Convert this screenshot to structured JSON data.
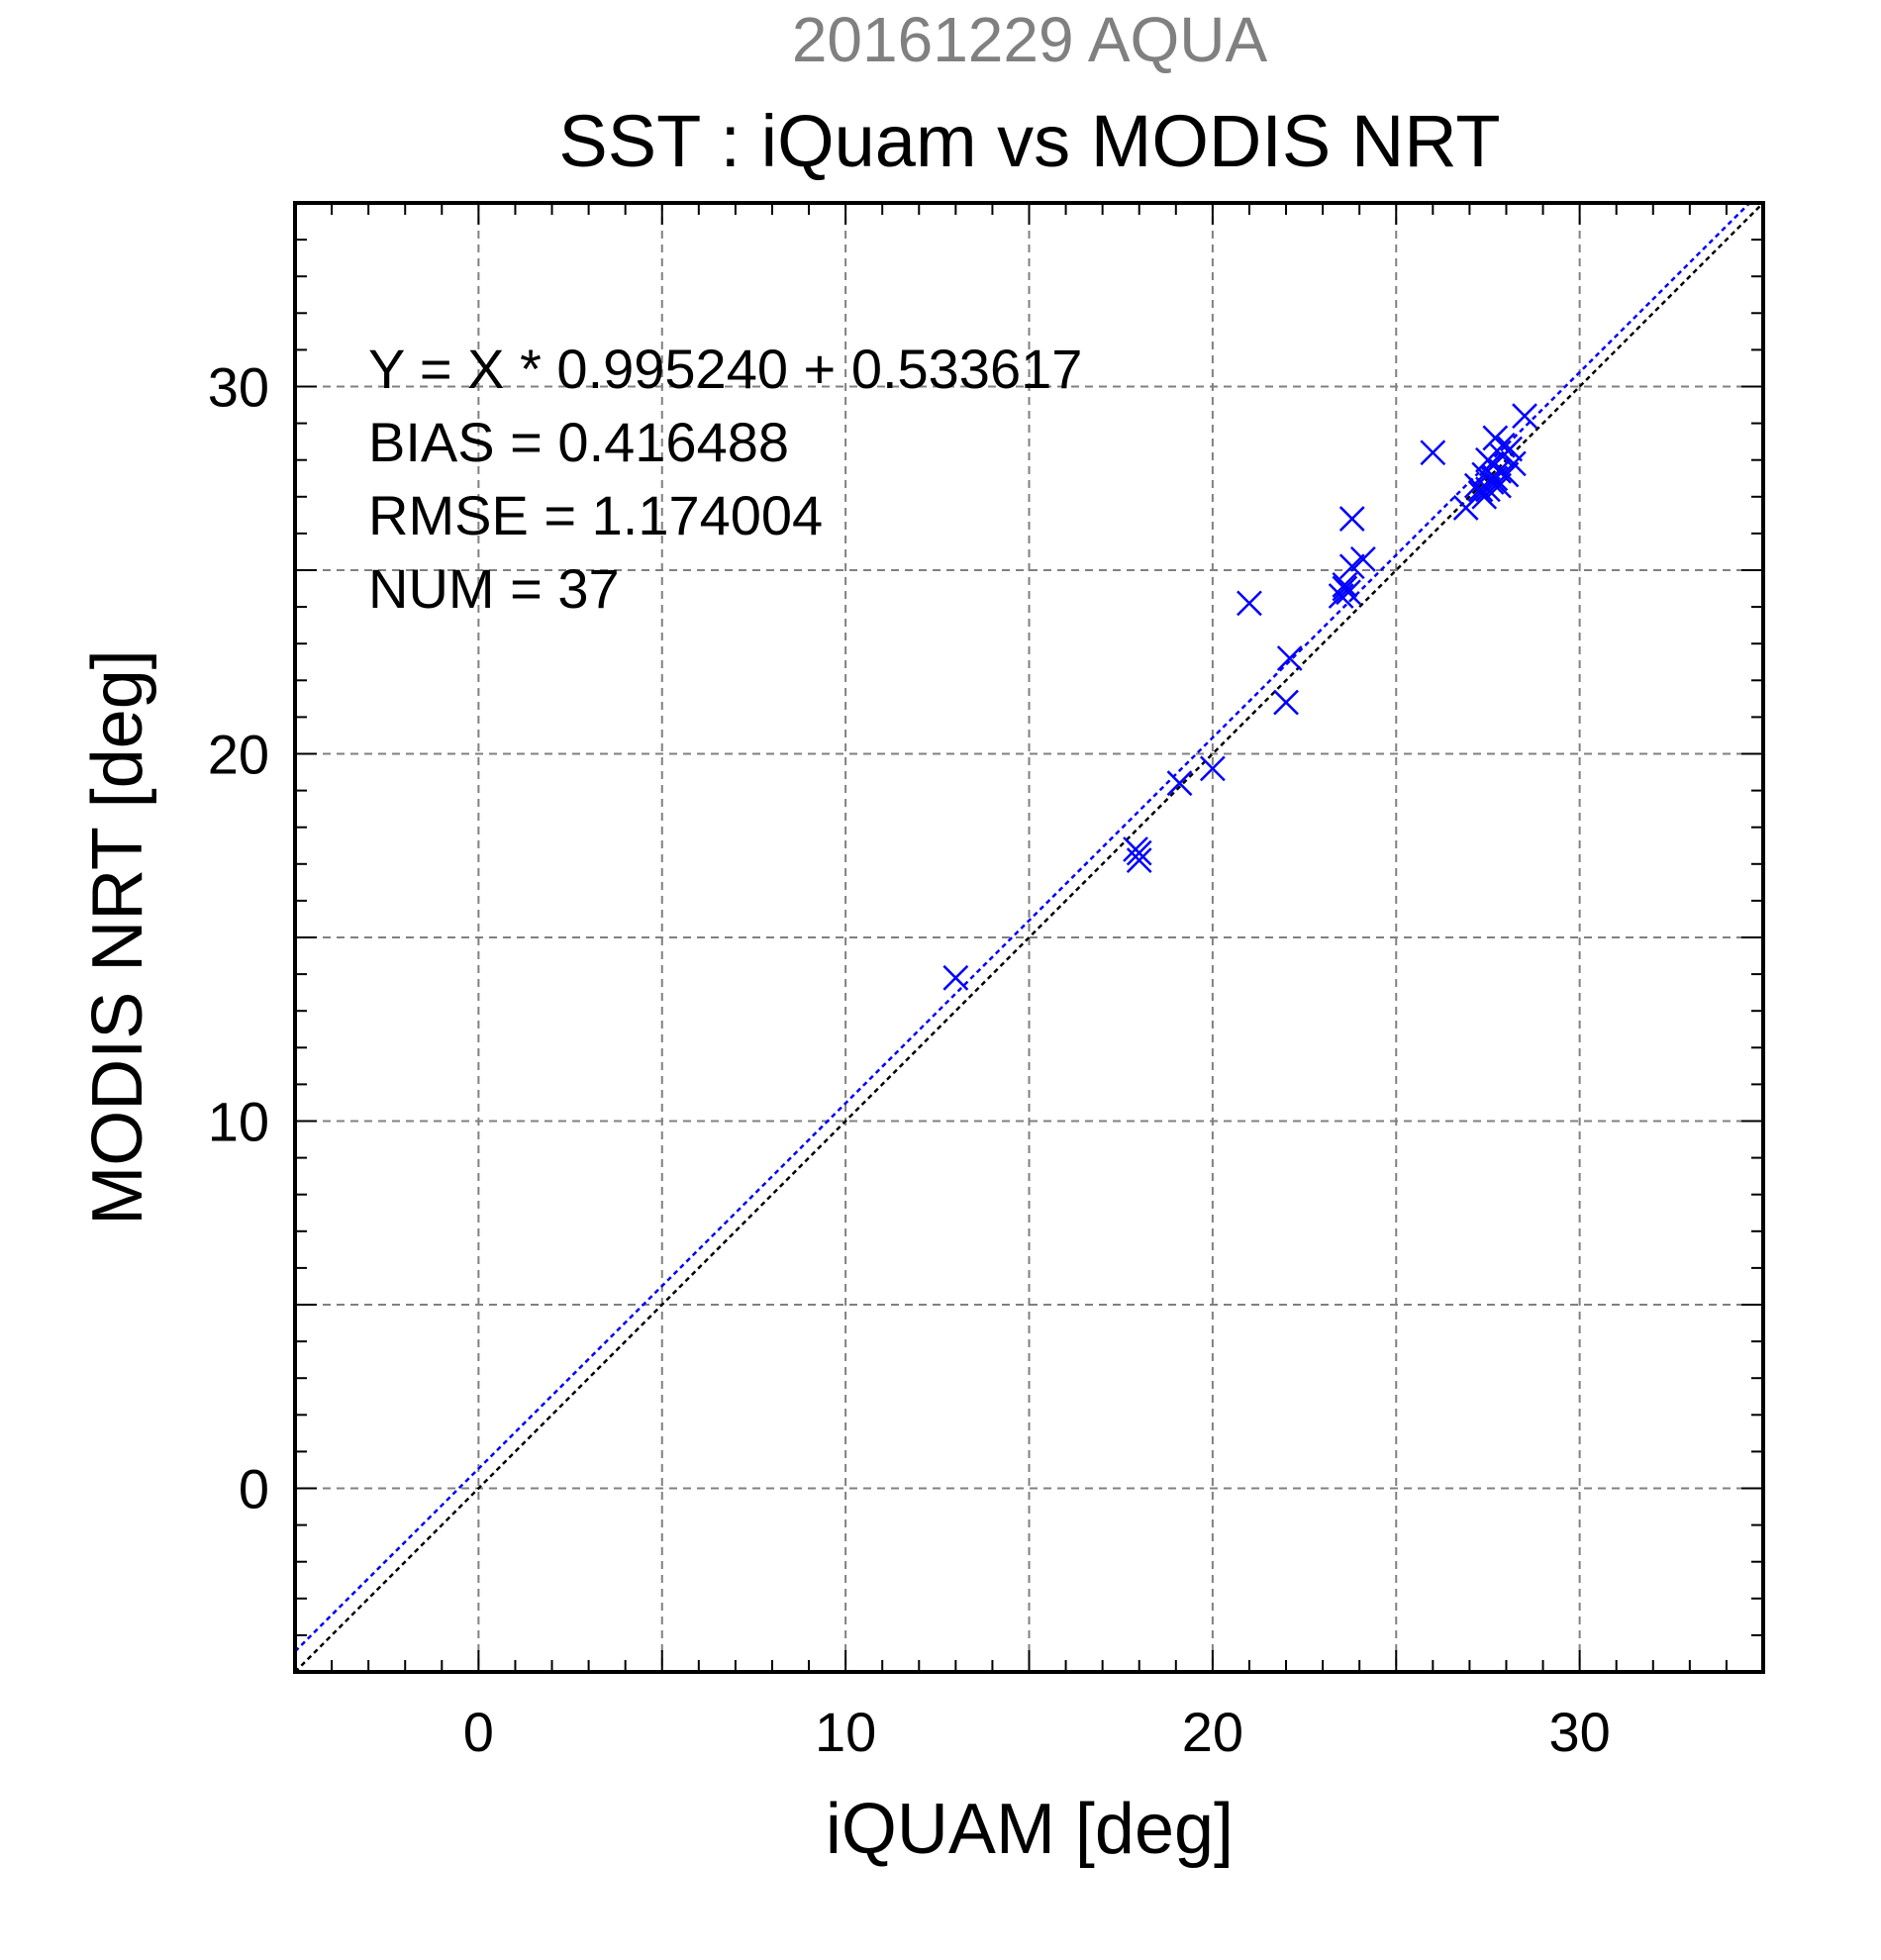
{
  "header": {
    "date_label": "20161229 AQUA",
    "title": "SST : iQuam vs MODIS NRT"
  },
  "stats": [
    "Y = X * 0.995240 + 0.533617",
    "BIAS = 0.416488",
    "RMSE = 1.174004",
    "NUM = 37"
  ],
  "colors": {
    "points": "#0000ff",
    "fit_line": "#0000ff",
    "identity_line": "#000000",
    "grid": "#808080",
    "date_label": "#808080"
  },
  "chart_data": {
    "type": "scatter",
    "xlabel": "iQUAM [deg]",
    "ylabel": "MODIS NRT [deg]",
    "xlim": [
      -5,
      35
    ],
    "ylim": [
      -5,
      35
    ],
    "xticks": [
      0,
      10,
      20,
      30
    ],
    "yticks": [
      0,
      10,
      20,
      30
    ],
    "grid": true,
    "marker": "x",
    "fit": {
      "slope": 0.99524,
      "intercept": 0.533617
    },
    "identity_line": true,
    "points": [
      [
        13.0,
        13.9
      ],
      [
        17.9,
        17.4
      ],
      [
        18.0,
        17.1
      ],
      [
        18.0,
        17.3
      ],
      [
        19.1,
        19.2
      ],
      [
        20.0,
        19.6
      ],
      [
        21.0,
        24.1
      ],
      [
        22.0,
        21.4
      ],
      [
        22.1,
        22.6
      ],
      [
        23.5,
        24.3
      ],
      [
        23.6,
        24.5
      ],
      [
        23.7,
        24.4
      ],
      [
        23.8,
        25.1
      ],
      [
        23.8,
        26.4
      ],
      [
        24.1,
        25.3
      ],
      [
        26.0,
        28.2
      ],
      [
        26.9,
        26.7
      ],
      [
        27.2,
        27.3
      ],
      [
        27.3,
        27.1
      ],
      [
        27.4,
        27.0
      ],
      [
        27.4,
        27.6
      ],
      [
        27.5,
        28.0
      ],
      [
        27.5,
        27.2
      ],
      [
        27.6,
        27.9
      ],
      [
        27.7,
        27.5
      ],
      [
        27.7,
        28.6
      ],
      [
        27.8,
        27.7
      ],
      [
        27.9,
        28.1
      ],
      [
        28.0,
        27.6
      ],
      [
        28.1,
        28.3
      ],
      [
        28.2,
        27.9
      ],
      [
        28.5,
        29.2
      ],
      [
        27.3,
        27.2
      ],
      [
        27.6,
        27.4
      ],
      [
        23.6,
        24.6
      ],
      [
        27.9,
        28.4
      ],
      [
        27.8,
        27.3
      ]
    ]
  }
}
